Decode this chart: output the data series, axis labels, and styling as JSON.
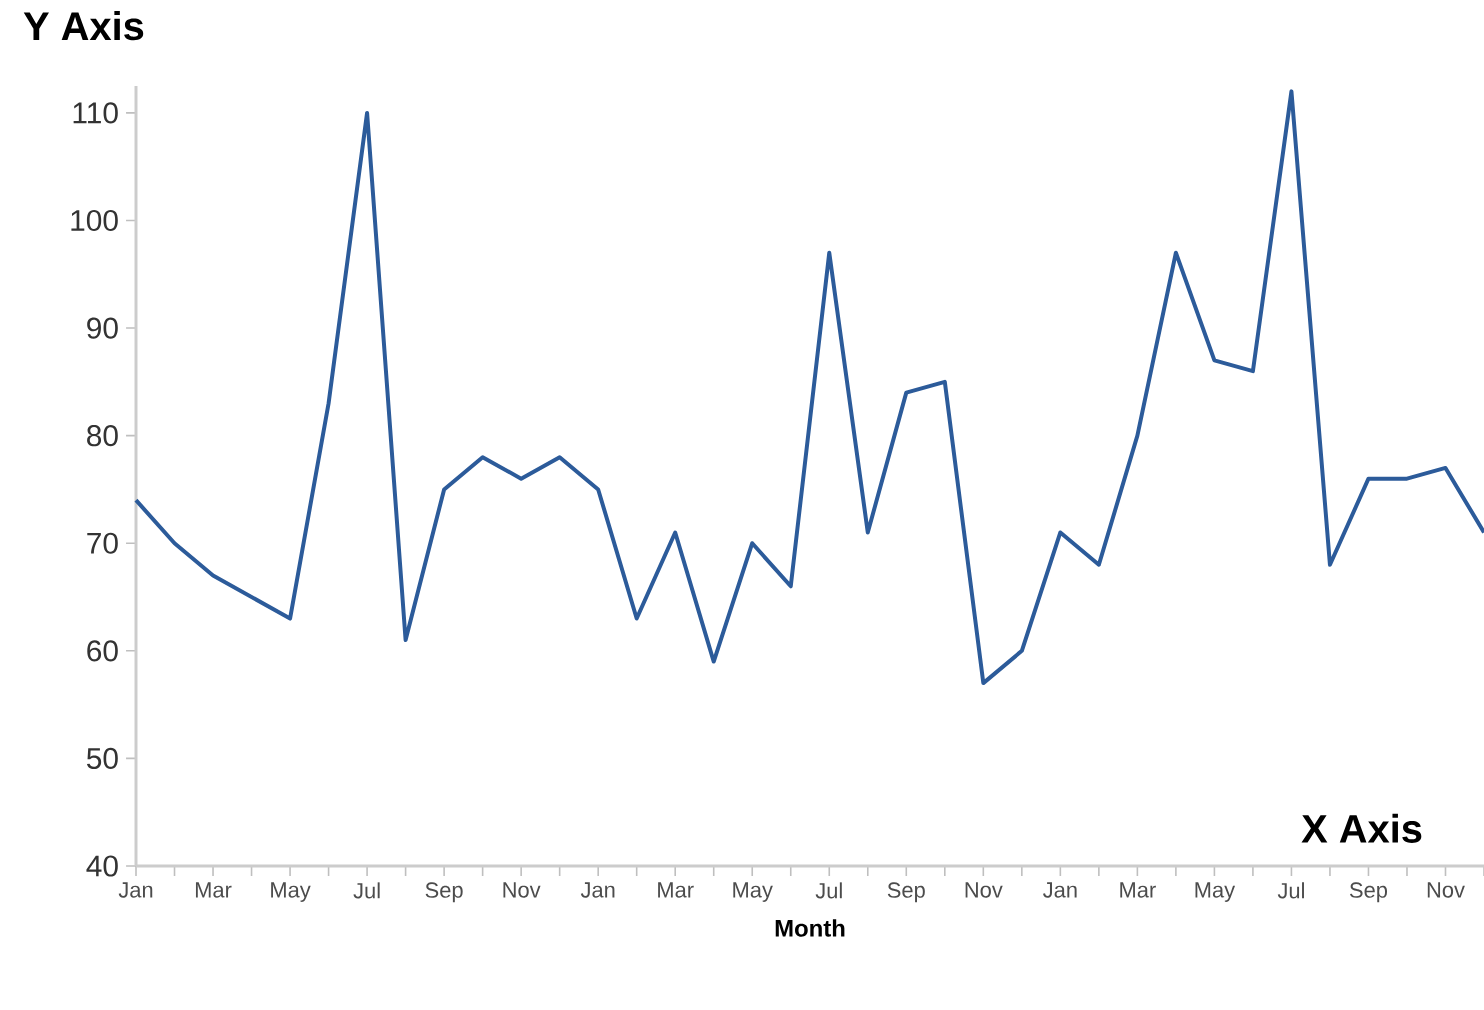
{
  "chart_data": {
    "type": "line",
    "ylabel": "Y Axis",
    "xlabel": "Month",
    "annotations": [
      "X Axis"
    ],
    "categories": [
      "Jan",
      null,
      "Mar",
      null,
      "May",
      null,
      "Jul",
      null,
      "Sep",
      null,
      "Nov",
      null,
      "Jan",
      null,
      "Mar",
      null,
      "May",
      null,
      "Jul",
      null,
      "Sep",
      null,
      "Nov",
      null,
      "Jan",
      null,
      "Mar",
      null,
      "May",
      null,
      "Jul",
      null,
      "Sep",
      null,
      "Nov",
      null
    ],
    "values": [
      74,
      70,
      67,
      65,
      63,
      83,
      110,
      61,
      75,
      78,
      76,
      78,
      75,
      63,
      71,
      59,
      70,
      66,
      97,
      71,
      84,
      85,
      57,
      60,
      71,
      68,
      80,
      97,
      87,
      86,
      112,
      68,
      76,
      76,
      77,
      71
    ],
    "color": "#2c5b9a",
    "ylim": [
      40,
      112.5
    ],
    "yticks": [
      40,
      50,
      60,
      70,
      80,
      90,
      100,
      110
    ],
    "grid": false,
    "marker": "none",
    "line_style": "solid"
  }
}
